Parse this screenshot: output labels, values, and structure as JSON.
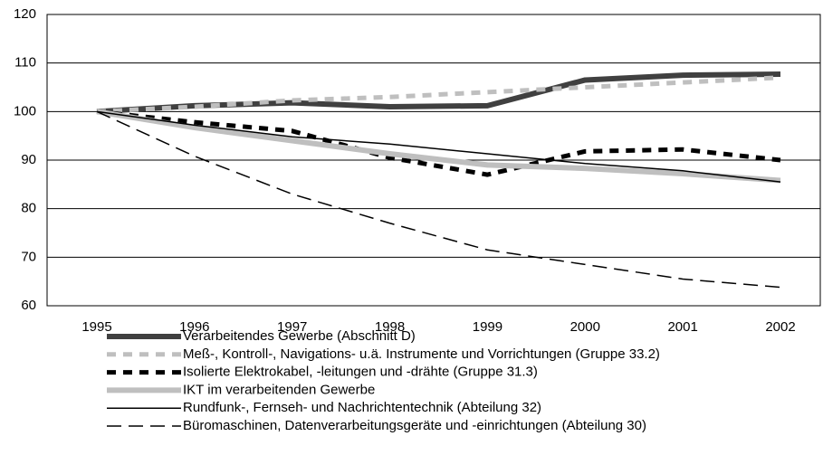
{
  "chart_data": {
    "type": "line",
    "categories": [
      "1995",
      "1996",
      "1997",
      "1998",
      "1999",
      "2000",
      "2001",
      "2002"
    ],
    "series": [
      {
        "name": "Verarbeitendes Gewerbe (Abschnitt D)",
        "color": "#404040",
        "width": 6,
        "dash": [],
        "values": [
          100,
          101.2,
          101.8,
          101,
          101.2,
          106.5,
          107.5,
          107.7
        ]
      },
      {
        "name": "Meß-, Kontroll-, Navigations- u.ä. Instrumente und Vorrichtungen (Gruppe 33.2)",
        "color": "#bfbfbf",
        "width": 5,
        "dash": [
          10,
          8
        ],
        "values": [
          100,
          101,
          102.3,
          103,
          104,
          105,
          106,
          107
        ]
      },
      {
        "name": "Isolierte Elektrokabel, -leitungen und -drähte (Gruppe 31.3)",
        "color": "#000000",
        "width": 5,
        "dash": [
          10,
          8
        ],
        "values": [
          100,
          97.8,
          96,
          90.5,
          87,
          91.8,
          92.2,
          90
        ]
      },
      {
        "name": "IKT im verarbeitenden Gewerbe",
        "color": "#bfbfbf",
        "width": 6,
        "dash": [],
        "values": [
          100,
          96.7,
          94,
          91.3,
          89,
          88.3,
          87.2,
          85.8
        ]
      },
      {
        "name": "Rundfunk-, Fernseh- und Nachrichtentechnik (Abteilung 32)",
        "color": "#000000",
        "width": 1.5,
        "dash": [],
        "values": [
          100,
          97.2,
          94.8,
          93.3,
          91.3,
          89.3,
          87.8,
          85.5
        ]
      },
      {
        "name": "Büromaschinen, Datenverarbeitungsgeräte und -einrichtungen (Abteilung 30)",
        "color": "#000000",
        "width": 1.5,
        "dash": [
          16,
          8
        ],
        "values": [
          100,
          90.8,
          83,
          77,
          71.5,
          68.5,
          65.5,
          63.8
        ]
      }
    ],
    "ylim": [
      60,
      120
    ],
    "yticks": [
      60,
      70,
      80,
      90,
      100,
      110,
      120
    ],
    "grid": true
  }
}
